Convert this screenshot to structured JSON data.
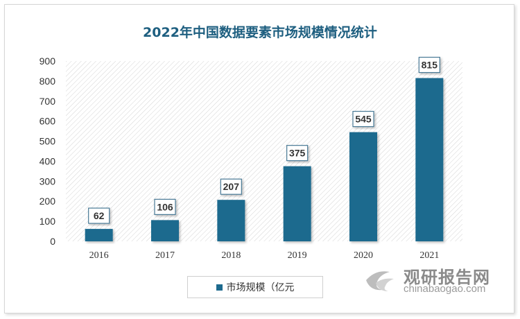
{
  "chart_data": {
    "type": "bar",
    "title": "2022年中国数据要素市场规模情况统计",
    "categories": [
      "2016",
      "2017",
      "2018",
      "2019",
      "2020",
      "2021"
    ],
    "series": [
      {
        "name": "市场规模（亿元",
        "values": [
          62,
          106,
          207,
          375,
          545,
          815
        ]
      }
    ],
    "ylim": [
      0,
      900
    ],
    "yticks": [
      "0",
      "100",
      "200",
      "300",
      "400",
      "500",
      "600",
      "700",
      "800",
      "900"
    ],
    "xlabel": "",
    "ylabel": "",
    "grid": false,
    "legend_position": "bottom",
    "bar_color": "#1d6a8e",
    "title_color": "#1e5f80"
  },
  "watermark": {
    "cn": "观研报告网",
    "en": "chinabaogao.com"
  }
}
